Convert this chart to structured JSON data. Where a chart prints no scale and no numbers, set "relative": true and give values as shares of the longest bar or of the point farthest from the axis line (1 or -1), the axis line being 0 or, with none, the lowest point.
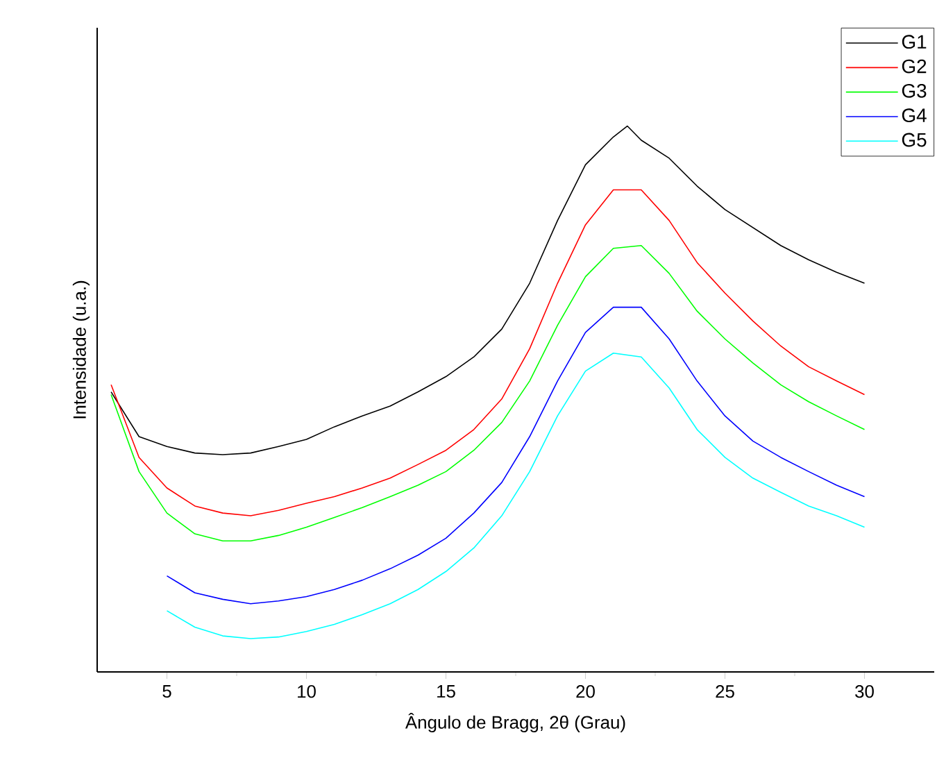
{
  "chart_data": {
    "type": "line",
    "xlabel": "Ângulo de Bragg, 2θ (Grau)",
    "ylabel": "Intensidade (u.a.)",
    "relative": true,
    "xlim": [
      2.5,
      32.5
    ],
    "xticks": [
      5,
      10,
      15,
      20,
      25,
      30
    ],
    "tick_labels": "x",
    "legend": "top right",
    "marker": "none",
    "line_style": "solid",
    "series": [
      {
        "name": "G1",
        "color": "#000000",
        "x": [
          3,
          4,
          5,
          6,
          7,
          8,
          9,
          10,
          11,
          12,
          13,
          14,
          15,
          16,
          17,
          18,
          19,
          20,
          21,
          21.5,
          22,
          23,
          24,
          25,
          26,
          27,
          28,
          29,
          30
        ],
        "values": [
          0.513,
          0.431,
          0.413,
          0.401,
          0.398,
          0.401,
          0.413,
          0.426,
          0.449,
          0.469,
          0.487,
          0.513,
          0.541,
          0.577,
          0.628,
          0.712,
          0.827,
          0.929,
          0.98,
          1.0,
          0.974,
          0.941,
          0.89,
          0.847,
          0.814,
          0.781,
          0.755,
          0.732,
          0.712
        ]
      },
      {
        "name": "G2",
        "color": "#ff0000",
        "x": [
          3,
          4,
          5,
          6,
          7,
          8,
          9,
          10,
          11,
          12,
          13,
          14,
          15,
          16,
          17,
          18,
          19,
          20,
          21,
          22,
          23,
          24,
          25,
          26,
          27,
          28,
          29,
          30
        ],
        "values": [
          0.526,
          0.393,
          0.337,
          0.304,
          0.291,
          0.286,
          0.296,
          0.309,
          0.321,
          0.337,
          0.355,
          0.38,
          0.406,
          0.444,
          0.5,
          0.592,
          0.712,
          0.819,
          0.883,
          0.883,
          0.827,
          0.75,
          0.694,
          0.643,
          0.597,
          0.559,
          0.533,
          0.508
        ]
      },
      {
        "name": "G3",
        "color": "#00ff00",
        "x": [
          3,
          4,
          5,
          6,
          7,
          8,
          9,
          10,
          11,
          12,
          13,
          14,
          15,
          16,
          17,
          18,
          19,
          20,
          21,
          22,
          23,
          24,
          25,
          26,
          27,
          28,
          29,
          30
        ],
        "values": [
          0.508,
          0.367,
          0.291,
          0.253,
          0.24,
          0.24,
          0.25,
          0.265,
          0.283,
          0.301,
          0.321,
          0.342,
          0.367,
          0.406,
          0.457,
          0.533,
          0.635,
          0.724,
          0.776,
          0.781,
          0.73,
          0.661,
          0.61,
          0.566,
          0.526,
          0.495,
          0.469,
          0.444
        ]
      },
      {
        "name": "G4",
        "color": "#0000ff",
        "x": [
          5,
          6,
          7,
          8,
          9,
          10,
          11,
          12,
          13,
          14,
          15,
          16,
          17,
          18,
          19,
          20,
          21,
          22,
          23,
          24,
          25,
          26,
          27,
          28,
          29,
          30
        ],
        "values": [
          0.176,
          0.145,
          0.133,
          0.125,
          0.13,
          0.138,
          0.151,
          0.168,
          0.189,
          0.214,
          0.245,
          0.291,
          0.347,
          0.431,
          0.533,
          0.622,
          0.668,
          0.668,
          0.61,
          0.533,
          0.469,
          0.423,
          0.393,
          0.367,
          0.342,
          0.321
        ]
      },
      {
        "name": "G5",
        "color": "#00ffff",
        "x": [
          5,
          6,
          7,
          8,
          9,
          10,
          11,
          12,
          13,
          14,
          15,
          16,
          17,
          18,
          19,
          20,
          21,
          22,
          23,
          24,
          25,
          26,
          27,
          28,
          29,
          30
        ],
        "values": [
          0.112,
          0.082,
          0.066,
          0.061,
          0.064,
          0.074,
          0.087,
          0.105,
          0.125,
          0.151,
          0.184,
          0.227,
          0.286,
          0.367,
          0.469,
          0.551,
          0.584,
          0.577,
          0.52,
          0.444,
          0.393,
          0.355,
          0.329,
          0.304,
          0.286,
          0.265
        ]
      }
    ]
  }
}
